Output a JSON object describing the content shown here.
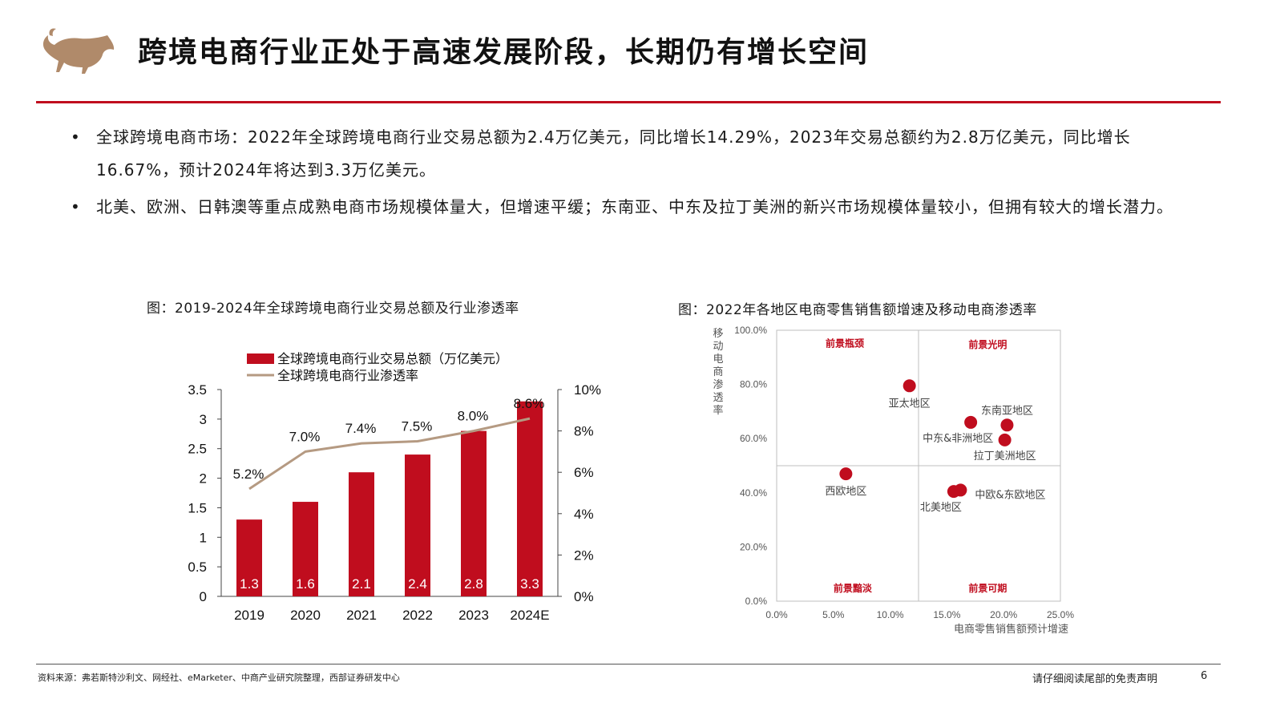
{
  "header": {
    "title": "跨境电商行业正处于高速发展阶段，长期仍有增长空间",
    "logo": "bull-logo",
    "accent_color": "#c00d1e"
  },
  "bullets": [
    {
      "text": "全球跨境电商市场：2022年全球跨境电商行业交易总额为2.4万亿美元，同比增长14.29%，2023年交易总额约为2.8万亿美元，同比增长16.67%，预计2024年将达到3.3万亿美元。"
    },
    {
      "text": "北美、欧洲、日韩澳等重点成熟电商市场规模体量大，但增速平缓；东南亚、中东及拉丁美洲的新兴市场规模体量较小，但拥有较大的增长潜力。"
    }
  ],
  "chart_data": [
    {
      "type": "bar",
      "caption": "图：2019-2024年全球跨境电商行业交易总额及行业渗透率",
      "categories": [
        "2019",
        "2020",
        "2021",
        "2022",
        "2023",
        "2024E"
      ],
      "series": [
        {
          "name": "全球跨境电商行业交易总额（万亿美元）",
          "kind": "bar",
          "axis": "left",
          "color": "#c00d1e",
          "values": [
            1.3,
            1.6,
            2.1,
            2.4,
            2.8,
            3.3
          ],
          "labels": [
            "1.3",
            "1.6",
            "2.1",
            "2.4",
            "2.8",
            "3.3"
          ]
        },
        {
          "name": "全球跨境电商行业渗透率",
          "kind": "line",
          "axis": "right",
          "color": "#b59a82",
          "values": [
            5.2,
            7.0,
            7.4,
            7.5,
            8.0,
            8.6
          ],
          "labels": [
            "5.2%",
            "7.0%",
            "7.4%",
            "7.5%",
            "8.0%",
            "8.6%"
          ]
        }
      ],
      "y_left": {
        "ylim": [
          0,
          3.5
        ],
        "ticks": [
          "0",
          "0.5",
          "1",
          "1.5",
          "2",
          "2.5",
          "3",
          "3.5"
        ]
      },
      "y_right": {
        "ylim": [
          0,
          10
        ],
        "ticks": [
          "0%",
          "2%",
          "4%",
          "6%",
          "8%",
          "10%"
        ]
      },
      "grid": false,
      "legend": "top"
    },
    {
      "type": "scatter",
      "caption": "图：2022年各地区电商零售销售额增速及移动电商渗透率",
      "xlabel": "电商零售销售额预计增速",
      "ylabel": "移动电商渗透率",
      "xlim": [
        0,
        25
      ],
      "ylim": [
        0,
        100
      ],
      "x_ticks": [
        "0.0%",
        "5.0%",
        "10.0%",
        "15.0%",
        "20.0%",
        "25.0%"
      ],
      "y_ticks": [
        "0.0%",
        "20.0%",
        "40.0%",
        "60.0%",
        "80.0%",
        "100.0%"
      ],
      "divider_x": 12.5,
      "divider_y": 50,
      "point_color": "#c00d1e",
      "quadrants": [
        {
          "label": "前景瓶颈",
          "pos": "top-left"
        },
        {
          "label": "前景光明",
          "pos": "top-right"
        },
        {
          "label": "前景黯淡",
          "pos": "bottom-left"
        },
        {
          "label": "前景可期",
          "pos": "bottom-right"
        }
      ],
      "points": [
        {
          "label": "亚太地区",
          "x": 11.7,
          "y": 79.5,
          "label_pos": "below"
        },
        {
          "label": "东南亚地区",
          "x": 20.3,
          "y": 65,
          "label_pos": "above"
        },
        {
          "label": "中东&非洲地区",
          "x": 17.1,
          "y": 66,
          "label_pos": "below-left"
        },
        {
          "label": "拉丁美洲地区",
          "x": 20.1,
          "y": 59.5,
          "label_pos": "below"
        },
        {
          "label": "西欧地区",
          "x": 6.1,
          "y": 47,
          "label_pos": "below"
        },
        {
          "label": "北美地区",
          "x": 15.6,
          "y": 40.5,
          "label_pos": "below-left"
        },
        {
          "label": "中欧&东欧地区",
          "x": 16.2,
          "y": 41,
          "label_pos": "right"
        }
      ],
      "grid": false
    }
  ],
  "footer": {
    "source": "资料来源：弗若斯特沙利文、网经社、eMarketer、中商产业研究院整理，西部证券研发中心",
    "disclaimer": "请仔细阅读尾部的免责声明",
    "page": "6"
  }
}
